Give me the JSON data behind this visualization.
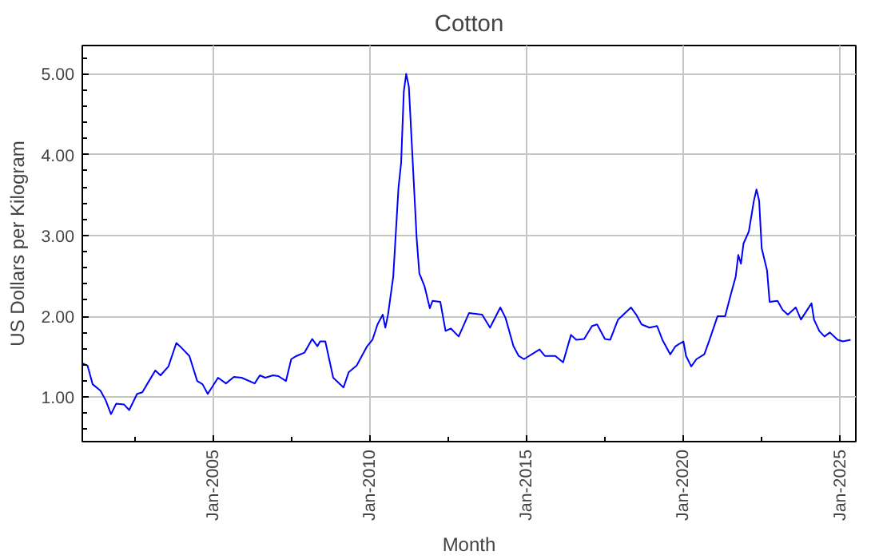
{
  "chart_data": {
    "type": "line",
    "title": "Cotton",
    "xlabel": "Month",
    "ylabel": "US Dollars per Kilogram",
    "grid": true,
    "marker": "none",
    "line_style": "solid",
    "xlim": [
      "2000-11",
      "2025-07"
    ],
    "xticks": [
      {
        "value": "2002-07",
        "label": null
      },
      {
        "value": "2005-01",
        "label": "Jan-2005"
      },
      {
        "value": "2007-07",
        "label": null
      },
      {
        "value": "2010-01",
        "label": "Jan-2010"
      },
      {
        "value": "2012-07",
        "label": null
      },
      {
        "value": "2015-01",
        "label": "Jan-2015"
      },
      {
        "value": "2017-07",
        "label": null
      },
      {
        "value": "2020-01",
        "label": "Jan-2020"
      },
      {
        "value": "2022-07",
        "label": null
      },
      {
        "value": "2025-01",
        "label": "Jan-2025"
      }
    ],
    "ylim": [
      0.45,
      5.35
    ],
    "yticks": [
      {
        "value": 0.6,
        "label": null
      },
      {
        "value": 0.8,
        "label": null
      },
      {
        "value": 1,
        "label": "1.00"
      },
      {
        "value": 1.2,
        "label": null
      },
      {
        "value": 1.4,
        "label": null
      },
      {
        "value": 1.6,
        "label": null
      },
      {
        "value": 1.8,
        "label": null
      },
      {
        "value": 2,
        "label": "2.00"
      },
      {
        "value": 2.2,
        "label": null
      },
      {
        "value": 2.4,
        "label": null
      },
      {
        "value": 2.6,
        "label": null
      },
      {
        "value": 2.8,
        "label": null
      },
      {
        "value": 3,
        "label": "3.00"
      },
      {
        "value": 3.2,
        "label": null
      },
      {
        "value": 3.4,
        "label": null
      },
      {
        "value": 3.6,
        "label": null
      },
      {
        "value": 3.8,
        "label": null
      },
      {
        "value": 4,
        "label": "4.00"
      },
      {
        "value": 4.2,
        "label": null
      },
      {
        "value": 4.4,
        "label": null
      },
      {
        "value": 4.6,
        "label": null
      },
      {
        "value": 4.8,
        "label": null
      },
      {
        "value": 5,
        "label": "5.00"
      },
      {
        "value": 5.2,
        "label": null
      }
    ],
    "x": [
      "2000-11",
      "2001-01",
      "2001-03",
      "2001-06",
      "2001-08",
      "2001-10",
      "2001-12",
      "2002-03",
      "2002-05",
      "2002-08",
      "2002-10",
      "2002-12",
      "2003-03",
      "2003-05",
      "2003-08",
      "2003-11",
      "2004-01",
      "2004-04",
      "2004-07",
      "2004-09",
      "2004-11",
      "2005-03",
      "2005-06",
      "2005-09",
      "2005-12",
      "2006-05",
      "2006-07",
      "2006-09",
      "2006-12",
      "2007-02",
      "2007-05",
      "2007-07",
      "2007-09",
      "2007-12",
      "2008-03",
      "2008-05",
      "2008-06",
      "2008-08",
      "2008-11",
      "2009-03",
      "2009-05",
      "2009-08",
      "2009-12",
      "2010-02",
      "2010-04",
      "2010-06",
      "2010-07",
      "2010-08",
      "2010-10",
      "2010-12",
      "2011-01",
      "2011-02",
      "2011-03",
      "2011-04",
      "2011-05",
      "2011-07",
      "2011-08",
      "2011-10",
      "2011-12",
      "2012-01",
      "2012-04",
      "2012-06",
      "2012-08",
      "2012-11",
      "2013-03",
      "2013-08",
      "2013-11",
      "2014-03",
      "2014-05",
      "2014-08",
      "2014-10",
      "2014-12",
      "2015-06",
      "2015-08",
      "2015-12",
      "2016-03",
      "2016-06",
      "2016-08",
      "2016-11",
      "2017-02",
      "2017-04",
      "2017-07",
      "2017-09",
      "2017-12",
      "2018-02",
      "2018-05",
      "2018-07",
      "2018-09",
      "2018-12",
      "2019-03",
      "2019-05",
      "2019-08",
      "2019-10",
      "2020-01",
      "2020-02",
      "2020-04",
      "2020-06",
      "2020-09",
      "2020-11",
      "2021-02",
      "2021-05",
      "2021-07",
      "2021-09",
      "2021-10",
      "2021-11",
      "2021-12",
      "2022-02",
      "2022-04",
      "2022-05",
      "2022-06",
      "2022-07",
      "2022-09",
      "2022-10",
      "2023-01",
      "2023-03",
      "2023-05",
      "2023-08",
      "2023-10",
      "2024-02",
      "2024-03",
      "2024-05",
      "2024-07",
      "2024-09",
      "2024-12",
      "2025-02",
      "2025-05"
    ],
    "series": [
      {
        "color": "#0000ff",
        "values": [
          1.42,
          1.39,
          1.16,
          1.08,
          0.96,
          0.79,
          0.92,
          0.91,
          0.84,
          1.04,
          1.06,
          1.17,
          1.33,
          1.27,
          1.38,
          1.67,
          1.61,
          1.51,
          1.2,
          1.16,
          1.04,
          1.24,
          1.17,
          1.25,
          1.24,
          1.17,
          1.27,
          1.24,
          1.27,
          1.26,
          1.2,
          1.47,
          1.51,
          1.55,
          1.72,
          1.63,
          1.69,
          1.69,
          1.24,
          1.12,
          1.31,
          1.39,
          1.63,
          1.71,
          1.9,
          2.02,
          1.86,
          2.02,
          2.49,
          3.59,
          3.9,
          4.78,
          5.0,
          4.84,
          4.22,
          2.96,
          2.53,
          2.37,
          2.1,
          2.19,
          2.18,
          1.82,
          1.85,
          1.75,
          2.04,
          2.02,
          1.86,
          2.11,
          1.98,
          1.63,
          1.51,
          1.47,
          1.59,
          1.51,
          1.51,
          1.43,
          1.77,
          1.71,
          1.72,
          1.88,
          1.9,
          1.72,
          1.71,
          1.96,
          2.02,
          2.11,
          2.02,
          1.9,
          1.86,
          1.88,
          1.71,
          1.53,
          1.63,
          1.69,
          1.51,
          1.38,
          1.47,
          1.53,
          1.71,
          2.0,
          2.0,
          2.25,
          2.49,
          2.76,
          2.65,
          2.9,
          3.05,
          3.43,
          3.57,
          3.43,
          2.84,
          2.57,
          2.18,
          2.19,
          2.08,
          2.02,
          2.11,
          1.96,
          2.16,
          1.96,
          1.82,
          1.75,
          1.8,
          1.71,
          1.69,
          1.71
        ]
      }
    ]
  }
}
